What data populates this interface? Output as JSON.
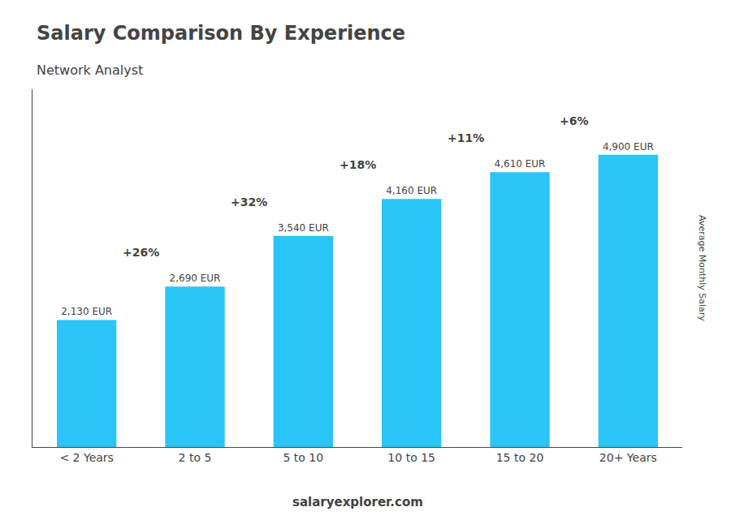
{
  "chart_data": {
    "type": "bar",
    "title": "Salary Comparison By Experience",
    "subtitle": "Network Analyst",
    "categories": [
      "< 2 Years",
      "2 to 5",
      "5 to 10",
      "10 to 15",
      "15 to 20",
      "20+ Years"
    ],
    "values": [
      2130,
      2690,
      3540,
      4160,
      4610,
      4900
    ],
    "value_labels": [
      "2,130 EUR",
      "2,690 EUR",
      "3,540 EUR",
      "4,160 EUR",
      "4,610 EUR",
      "4,900 EUR"
    ],
    "data_labels": true,
    "pct_changes": [
      "+26%",
      "+32%",
      "+18%",
      "+11%",
      "+6%"
    ],
    "annotations": [
      "Average Monthly Salary",
      "salaryexplorer.com"
    ],
    "color": "#29c5f6",
    "ylim": [
      0,
      6000
    ],
    "tick_labels": "x",
    "grid": false
  }
}
